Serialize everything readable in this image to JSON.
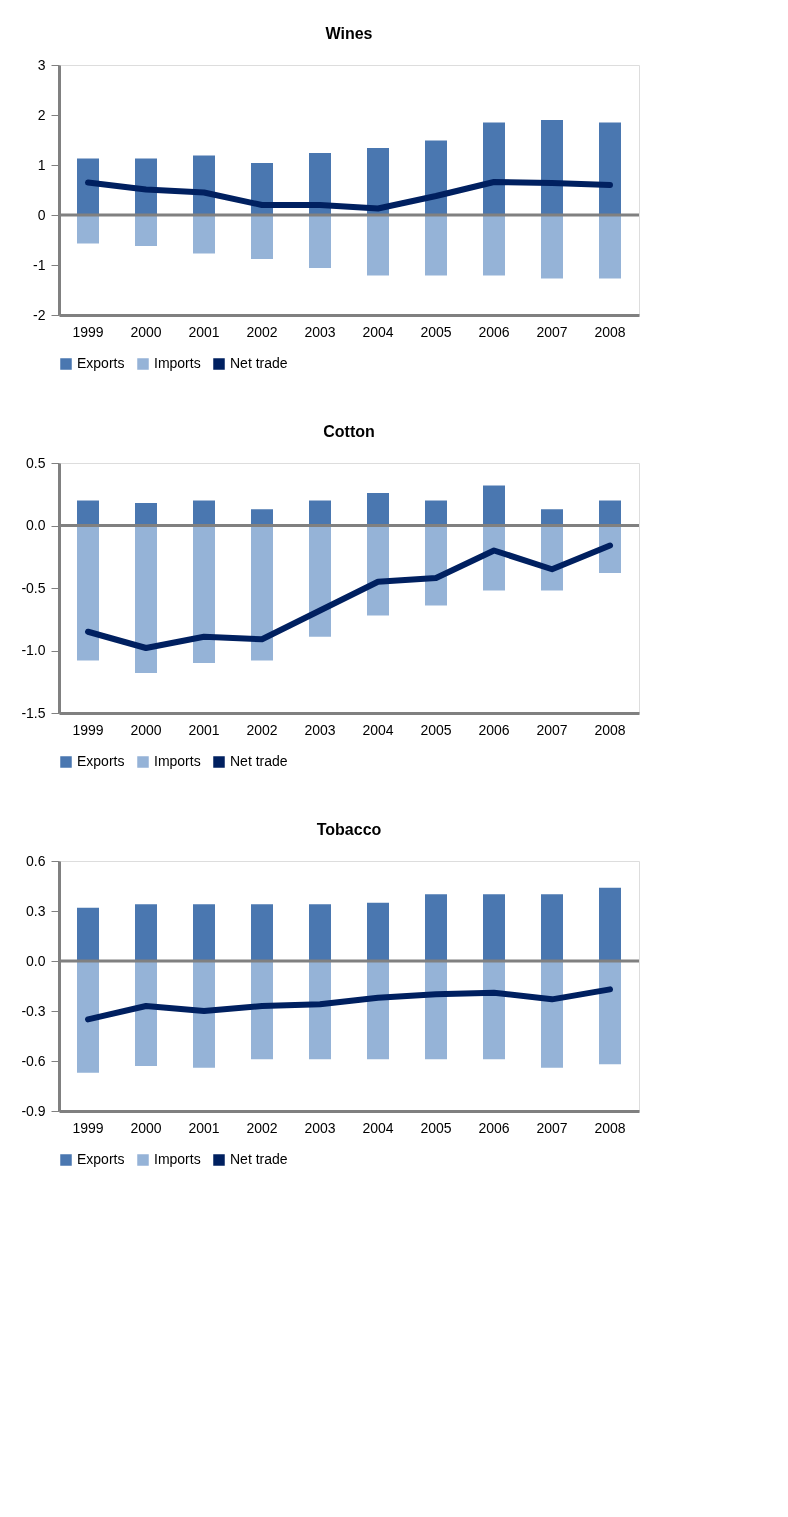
{
  "chart_data": [
    {
      "type": "bar",
      "stacked": true,
      "title": "Wines",
      "categories": [
        "1999",
        "2000",
        "2001",
        "2002",
        "2003",
        "2004",
        "2005",
        "2006",
        "2007",
        "2008"
      ],
      "ylim": [
        -2,
        3
      ],
      "yticks": [
        -2,
        -1,
        0,
        1,
        2,
        3
      ],
      "grid": false,
      "legend": "bottom",
      "ref_lines": [
        {
          "axis": "y",
          "value": 0,
          "color": "#808080"
        }
      ],
      "series": [
        {
          "name": "Exports",
          "color": "#4a77b0",
          "values": [
            1.13,
            1.13,
            1.19,
            1.04,
            1.24,
            1.34,
            1.49,
            1.85,
            1.9,
            1.85
          ]
        },
        {
          "name": "Imports",
          "color": "#95b3d7",
          "values": [
            -0.57,
            -0.62,
            -0.77,
            -0.88,
            -1.06,
            -1.21,
            -1.21,
            -1.21,
            -1.27,
            -1.27
          ]
        },
        {
          "name": "Net trade",
          "type": "line",
          "color": "#002060",
          "values": [
            0.65,
            0.51,
            0.45,
            0.2,
            0.2,
            0.13,
            0.38,
            0.66,
            0.64,
            0.6
          ]
        }
      ]
    },
    {
      "type": "bar",
      "stacked": true,
      "title": "Cotton",
      "categories": [
        "1999",
        "2000",
        "2001",
        "2002",
        "2003",
        "2004",
        "2005",
        "2006",
        "2007",
        "2008"
      ],
      "ylim": [
        -1.5,
        0.5
      ],
      "yticks": [
        {
          "value": -1.5,
          "label": "-1.5"
        },
        {
          "value": -1,
          "label": "-1.0"
        },
        {
          "value": -0.5,
          "label": "-0.5"
        },
        {
          "value": 0,
          "label": "0.0"
        },
        {
          "value": 0.5,
          "label": "0.5"
        }
      ],
      "grid": false,
      "legend": "bottom",
      "ref_lines": [
        {
          "axis": "y",
          "value": 0,
          "color": "#808080"
        }
      ],
      "series": [
        {
          "name": "Exports",
          "color": "#4a77b0",
          "values": [
            0.2,
            0.18,
            0.2,
            0.13,
            0.2,
            0.26,
            0.2,
            0.32,
            0.13,
            0.2
          ]
        },
        {
          "name": "Imports",
          "color": "#95b3d7",
          "values": [
            -1.08,
            -1.18,
            -1.1,
            -1.08,
            -0.89,
            -0.72,
            -0.64,
            -0.52,
            -0.52,
            -0.38
          ]
        },
        {
          "name": "Net trade",
          "type": "line",
          "color": "#002060",
          "values": [
            -0.85,
            -0.98,
            -0.89,
            -0.91,
            -0.68,
            -0.45,
            -0.42,
            -0.2,
            -0.35,
            -0.16
          ]
        }
      ]
    },
    {
      "type": "bar",
      "stacked": true,
      "title": "Tobacco",
      "categories": [
        "1999",
        "2000",
        "2001",
        "2002",
        "2003",
        "2004",
        "2005",
        "2006",
        "2007",
        "2008"
      ],
      "ylim": [
        -0.9,
        0.6
      ],
      "yticks": [
        -0.9,
        -0.6,
        -0.3,
        {
          "value": 0,
          "label": "0.0"
        },
        0.3,
        0.6
      ],
      "grid": false,
      "legend": "bottom",
      "ref_lines": [
        {
          "axis": "y",
          "value": 0,
          "color": "#808080"
        }
      ],
      "series": [
        {
          "name": "Exports",
          "color": "#4a77b0",
          "values": [
            0.32,
            0.34,
            0.34,
            0.34,
            0.34,
            0.35,
            0.4,
            0.4,
            0.4,
            0.44
          ]
        },
        {
          "name": "Imports",
          "color": "#95b3d7",
          "values": [
            -0.67,
            -0.63,
            -0.64,
            -0.59,
            -0.59,
            -0.59,
            -0.59,
            -0.59,
            -0.64,
            -0.62
          ]
        },
        {
          "name": "Net trade",
          "type": "line",
          "color": "#002060",
          "values": [
            -0.35,
            -0.27,
            -0.3,
            -0.27,
            -0.26,
            -0.22,
            -0.2,
            -0.19,
            -0.23,
            -0.17
          ]
        }
      ]
    }
  ]
}
